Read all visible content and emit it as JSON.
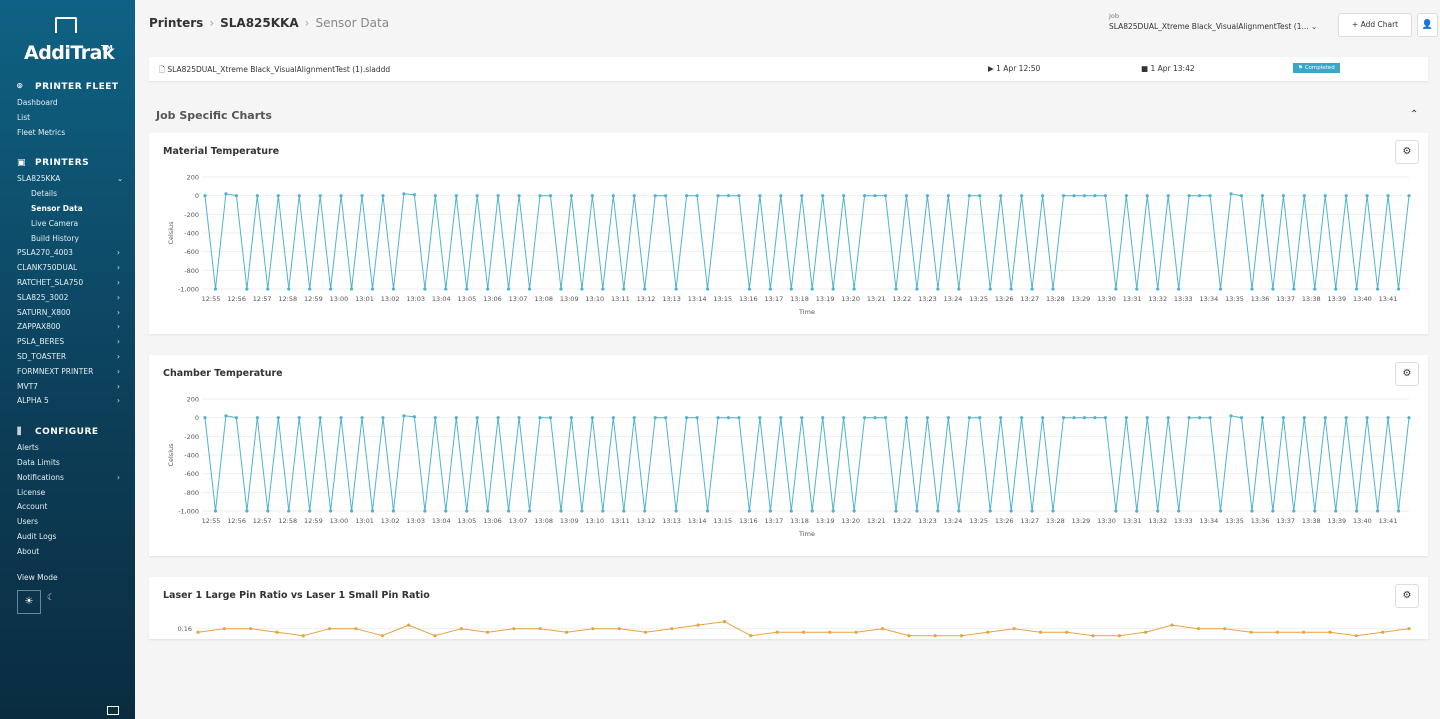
{
  "sidebar": {
    "logo": "AddiTrak",
    "logo_tm": "TM",
    "sections": [
      {
        "title": "PRINTER FLEET",
        "items": [
          {
            "label": "Dashboard"
          },
          {
            "label": "List"
          },
          {
            "label": "Fleet Metrics"
          }
        ]
      },
      {
        "title": "PRINTERS",
        "items": [
          {
            "label": "SLA825KKA",
            "children": [
              {
                "label": "Details"
              },
              {
                "label": "Sensor Data",
                "active": true
              },
              {
                "label": "Live Camera"
              },
              {
                "label": "Build History"
              }
            ]
          },
          {
            "label": "PSLA270_4003",
            "expandable": true
          },
          {
            "label": "CLANK750DUAL",
            "expandable": true
          },
          {
            "label": "RATCHET_SLA750",
            "expandable": true
          },
          {
            "label": "SLA825_3002",
            "expandable": true
          },
          {
            "label": "SATURN_X800",
            "expandable": true
          },
          {
            "label": "ZAPPAX800",
            "expandable": true
          },
          {
            "label": "PSLA_BERES",
            "expandable": true
          },
          {
            "label": "SD_TOASTER",
            "expandable": true
          },
          {
            "label": "FORMNEXT PRINTER",
            "expandable": true
          },
          {
            "label": "MVT7",
            "expandable": true
          },
          {
            "label": "ALPHA 5",
            "expandable": true
          }
        ]
      },
      {
        "title": "CONFIGURE",
        "items": [
          {
            "label": "Alerts"
          },
          {
            "label": "Data Limits"
          },
          {
            "label": "Notifications",
            "expandable": true
          },
          {
            "label": "License"
          },
          {
            "label": "Account"
          },
          {
            "label": "Users"
          },
          {
            "label": "Audit Logs"
          },
          {
            "label": "About"
          }
        ]
      }
    ],
    "view_mode": "View Mode"
  },
  "header": {
    "breadcrumb": [
      "Printers",
      "SLA825KKA",
      "Sensor Data"
    ],
    "job_label": "Job",
    "job_value": "SLA825DUAL_Xtreme Black_VisualAlignmentTest (1...",
    "add_chart": "Add Chart"
  },
  "job_bar": {
    "file": "SLA825DUAL_Xtreme Black_VisualAlignmentTest (1).sladdd",
    "start": "1 Apr 12:50",
    "end": "1 Apr 13:42",
    "status": "Completed"
  },
  "section_title": "Job Specific Charts",
  "charts": [
    {
      "type": "line",
      "title": "Material Temperature",
      "x_label": "Time",
      "y_label": "Celsius",
      "color": "#4fb3cf",
      "ylim": [
        -1000,
        200
      ],
      "yticks": [
        200,
        0,
        -200,
        -400,
        -600,
        -800,
        {
          "value": -1000,
          "label": "-1,000"
        }
      ],
      "xticks": [
        "12:55",
        "12:56",
        "12:57",
        "12:58",
        "12:59",
        "13:00",
        "13:01",
        "13:02",
        "13:03",
        "13:04",
        "13:05",
        "13:06",
        "13:07",
        "13:08",
        "13:09",
        "13:10",
        "13:11",
        "13:12",
        "13:13",
        "13:14",
        "13:15",
        "13:16",
        "13:17",
        "13:18",
        "13:19",
        "13:20",
        "13:21",
        "13:22",
        "13:23",
        "13:24",
        "13:25",
        "13:26",
        "13:27",
        "13:28",
        "13:29",
        "13:30",
        "13:31",
        "13:32",
        "13:33",
        "13:34",
        "13:35",
        "13:36",
        "13:37",
        "13:38",
        "13:39",
        "13:40",
        "13:41"
      ],
      "values": [
        0,
        -1000,
        20,
        0,
        -1000,
        0,
        -1000,
        0,
        -1000,
        0,
        -1000,
        0,
        -1000,
        0,
        -1000,
        0,
        -1000,
        0,
        -1000,
        20,
        10,
        -1000,
        0,
        -1000,
        0,
        -1000,
        0,
        -1000,
        0,
        -1000,
        0,
        -1000,
        0,
        0,
        -1000,
        0,
        -1000,
        0,
        -1000,
        0,
        -1000,
        0,
        -1000,
        0,
        0,
        -1000,
        0,
        0,
        -1000,
        0,
        0,
        0,
        -1000,
        0,
        -1000,
        0,
        -1000,
        0,
        -1000,
        0,
        -1000,
        0,
        -1000,
        0,
        0,
        0,
        -1000,
        0,
        -1000,
        0,
        -1000,
        0,
        -1000,
        0,
        0,
        -1000,
        0,
        -1000,
        0,
        -1000,
        0,
        -1000,
        0,
        0,
        0,
        0,
        0,
        -1000,
        0,
        -1000,
        0,
        -1000,
        0,
        -1000,
        0,
        0,
        0,
        -1000,
        20,
        0,
        -1000,
        0,
        -1000,
        0,
        -1000,
        0,
        -1000,
        0,
        -1000,
        0,
        -1000,
        0,
        -1000,
        0,
        -1000,
        0
      ]
    },
    {
      "type": "line",
      "title": "Chamber Temperature",
      "x_label": "Time",
      "y_label": "Celsius",
      "color": "#4fb3cf",
      "ylim": [
        -1000,
        200
      ],
      "yticks": [
        200,
        0,
        -200,
        -400,
        -600,
        -800,
        {
          "value": -1000,
          "label": "-1,000"
        }
      ],
      "xticks": [
        "12:55",
        "12:56",
        "12:57",
        "12:58",
        "12:59",
        "13:00",
        "13:01",
        "13:02",
        "13:03",
        "13:04",
        "13:05",
        "13:06",
        "13:07",
        "13:08",
        "13:09",
        "13:10",
        "13:11",
        "13:12",
        "13:13",
        "13:14",
        "13:15",
        "13:16",
        "13:17",
        "13:18",
        "13:19",
        "13:20",
        "13:21",
        "13:22",
        "13:23",
        "13:24",
        "13:25",
        "13:26",
        "13:27",
        "13:28",
        "13:29",
        "13:30",
        "13:31",
        "13:32",
        "13:33",
        "13:34",
        "13:35",
        "13:36",
        "13:37",
        "13:38",
        "13:39",
        "13:40",
        "13:41"
      ],
      "values": [
        0,
        -1000,
        20,
        0,
        -1000,
        0,
        -1000,
        0,
        -1000,
        0,
        -1000,
        0,
        -1000,
        0,
        -1000,
        0,
        -1000,
        0,
        -1000,
        20,
        10,
        -1000,
        0,
        -1000,
        0,
        -1000,
        0,
        -1000,
        0,
        -1000,
        0,
        -1000,
        0,
        0,
        -1000,
        0,
        -1000,
        0,
        -1000,
        0,
        -1000,
        0,
        -1000,
        0,
        0,
        -1000,
        0,
        0,
        -1000,
        0,
        0,
        0,
        -1000,
        0,
        -1000,
        0,
        -1000,
        0,
        -1000,
        0,
        -1000,
        0,
        -1000,
        0,
        0,
        0,
        -1000,
        0,
        -1000,
        0,
        -1000,
        0,
        -1000,
        0,
        0,
        -1000,
        0,
        -1000,
        0,
        -1000,
        0,
        -1000,
        0,
        0,
        0,
        0,
        0,
        -1000,
        0,
        -1000,
        0,
        -1000,
        0,
        -1000,
        0,
        0,
        0,
        -1000,
        20,
        0,
        -1000,
        0,
        -1000,
        0,
        -1000,
        0,
        -1000,
        0,
        -1000,
        0,
        -1000,
        0,
        -1000,
        0,
        -1000,
        0
      ]
    },
    {
      "type": "line",
      "title": "Laser 1 Large Pin Ratio vs Laser 1 Small Pin Ratio",
      "color": "#e8a33d",
      "ylim": [
        0.15,
        0.165
      ],
      "yticks": [
        0.16
      ],
      "values": [
        0.159,
        0.16,
        0.16,
        0.159,
        0.158,
        0.16,
        0.16,
        0.158,
        0.161,
        0.158,
        0.16,
        0.159,
        0.16,
        0.16,
        0.159,
        0.16,
        0.16,
        0.159,
        0.16,
        0.161,
        0.162,
        0.158,
        0.159,
        0.159,
        0.159,
        0.159,
        0.16,
        0.158,
        0.158,
        0.158,
        0.159,
        0.16,
        0.159,
        0.159,
        0.158,
        0.158,
        0.159,
        0.161,
        0.16,
        0.16,
        0.159,
        0.159,
        0.159,
        0.159,
        0.158,
        0.159,
        0.16
      ]
    }
  ]
}
